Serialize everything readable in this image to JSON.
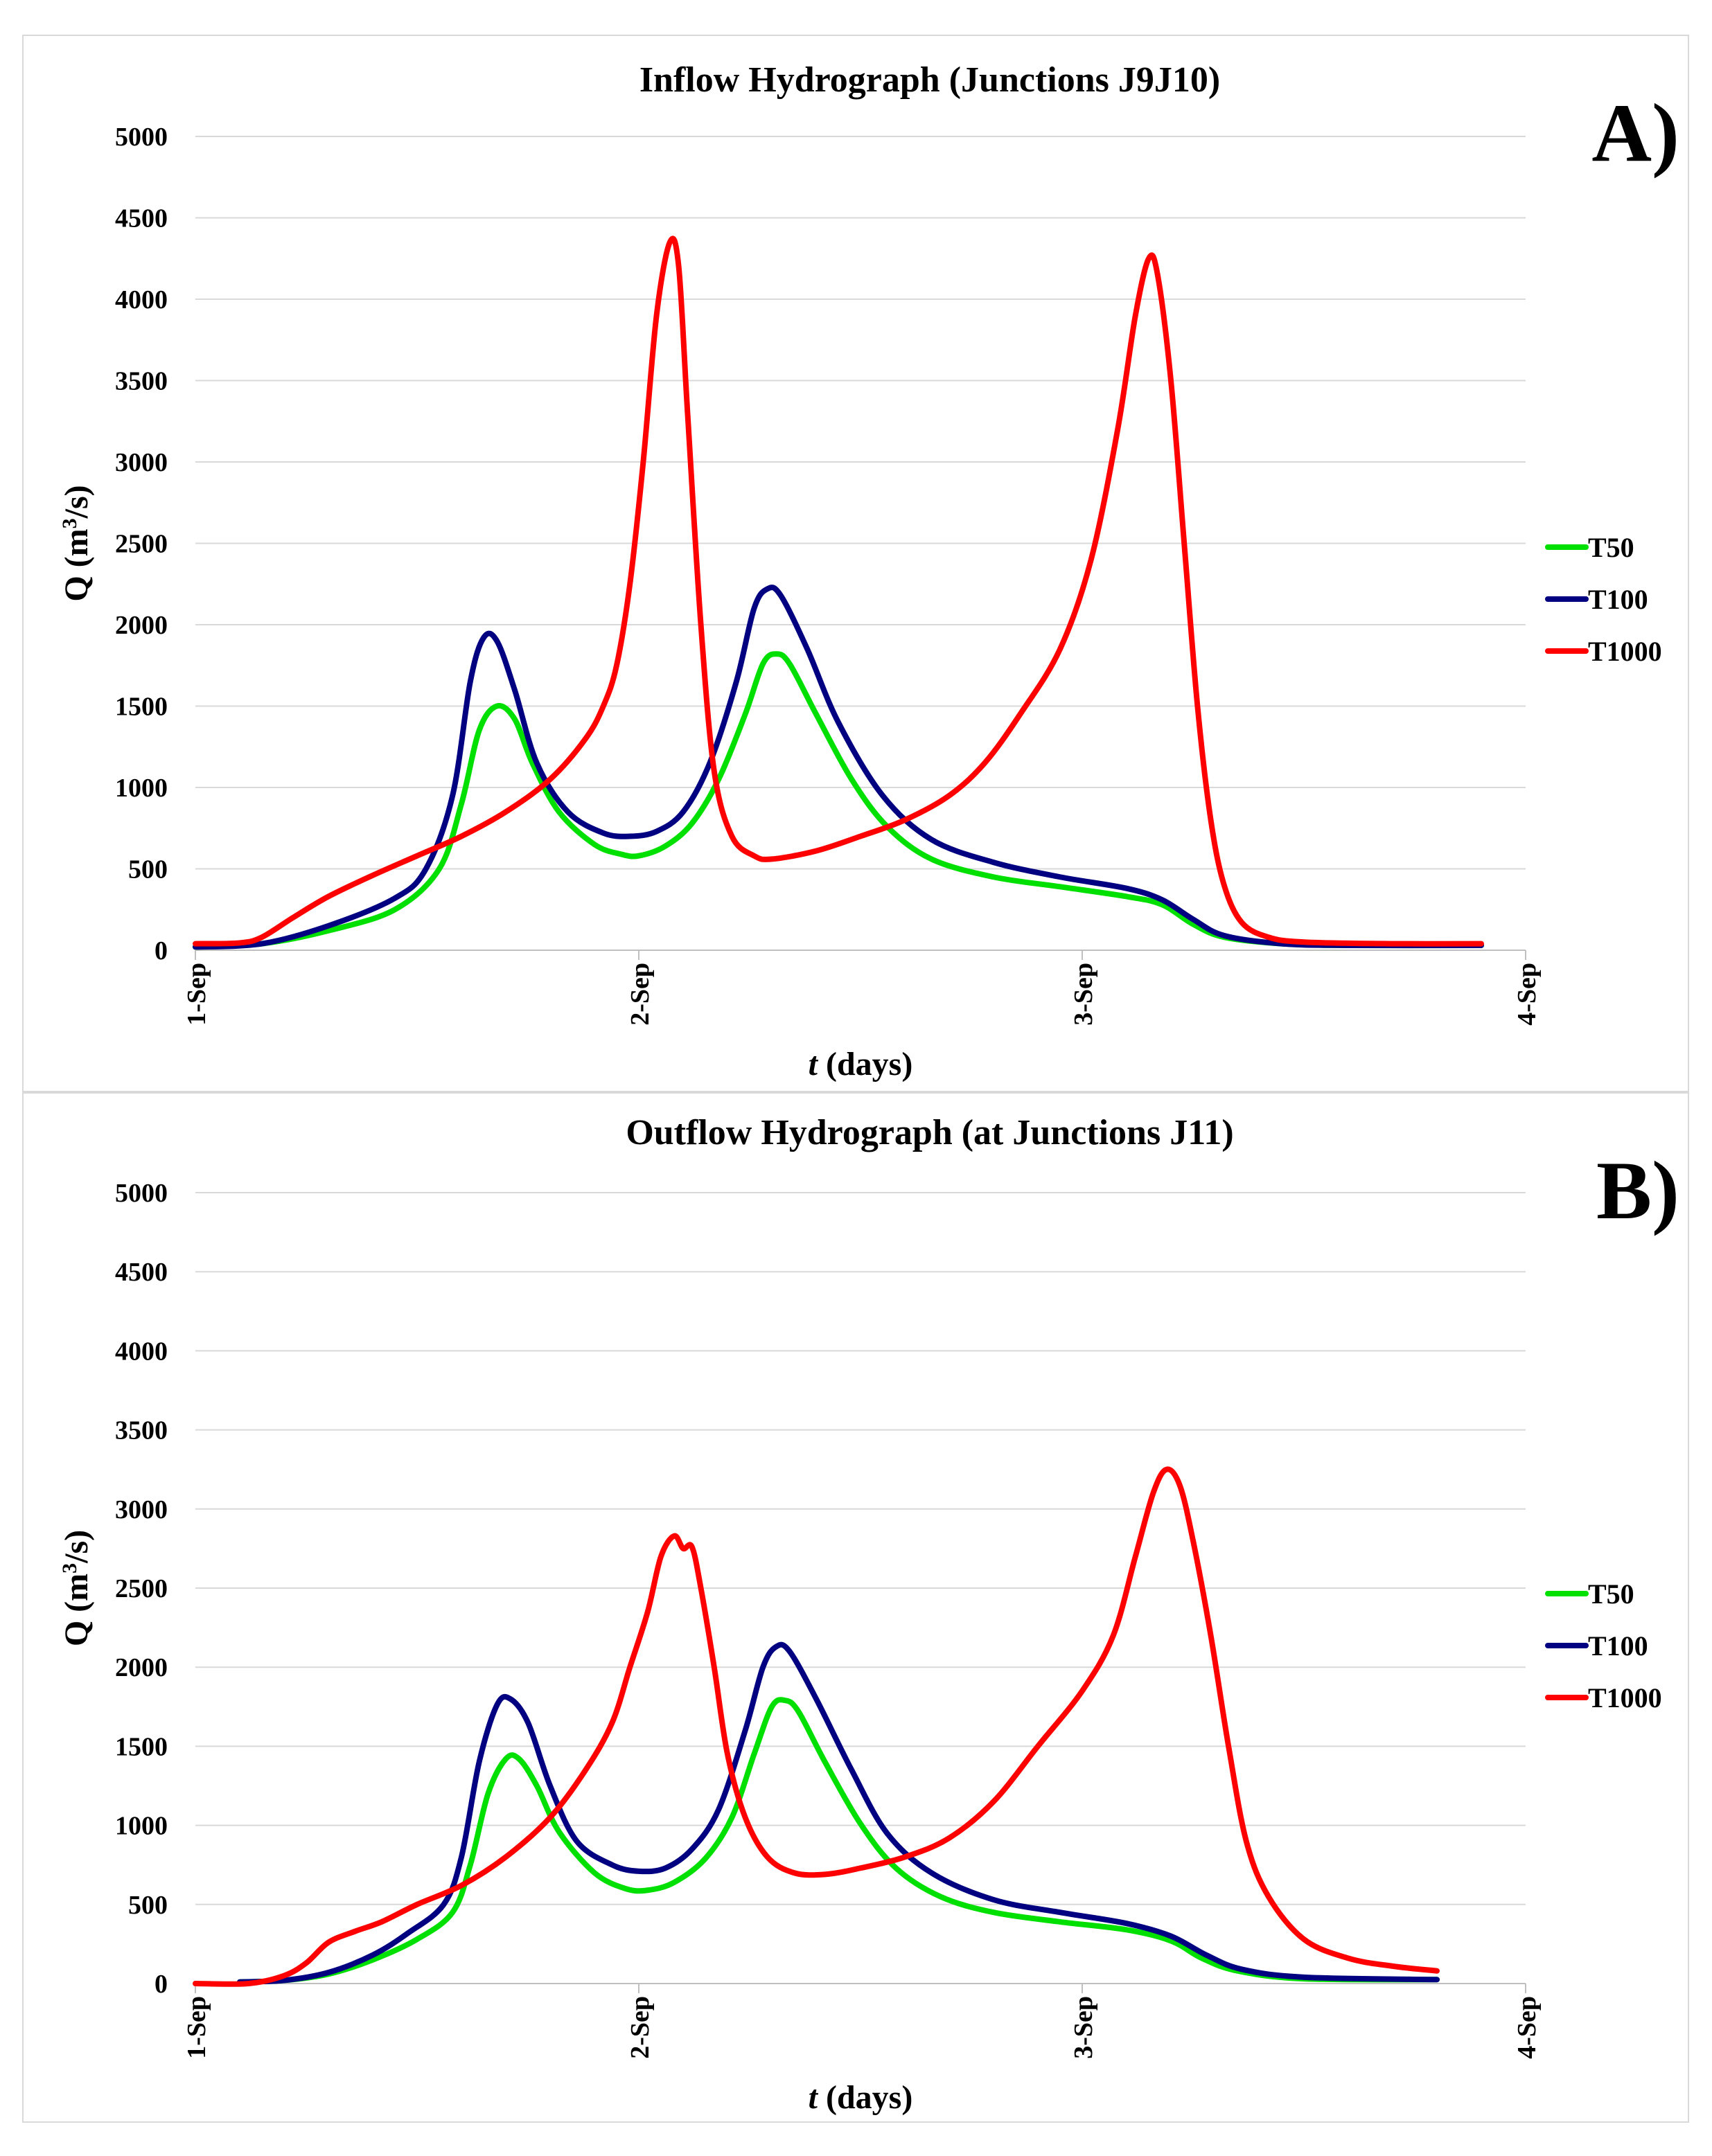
{
  "chart_data": [
    {
      "type": "line",
      "panel_label": "A)",
      "title": "Inflow Hydrograph (Junctions J9J10)",
      "xlabel_italic": "t",
      "xlabel_rest": "(days)",
      "ylabel_main": "Q (m",
      "ylabel_sup": "3",
      "ylabel_end": "/s)",
      "ylim": [
        0,
        5000
      ],
      "yticks": [
        0,
        500,
        1000,
        1500,
        2000,
        2500,
        3000,
        3500,
        4000,
        4500,
        5000
      ],
      "xlim": [
        0,
        3
      ],
      "xticks": [
        {
          "v": 0,
          "label": "1-Sep"
        },
        {
          "v": 1,
          "label": "2-Sep"
        },
        {
          "v": 2,
          "label": "3-Sep"
        },
        {
          "v": 3,
          "label": "4-Sep"
        }
      ],
      "grid": true,
      "legend_position": "right",
      "series": [
        {
          "name": "T50",
          "color": "#00e000",
          "points": [
            [
              0,
              20
            ],
            [
              0.15,
              40
            ],
            [
              0.3,
              120
            ],
            [
              0.45,
              250
            ],
            [
              0.55,
              500
            ],
            [
              0.6,
              900
            ],
            [
              0.64,
              1350
            ],
            [
              0.68,
              1500
            ],
            [
              0.72,
              1420
            ],
            [
              0.76,
              1150
            ],
            [
              0.82,
              850
            ],
            [
              0.9,
              650
            ],
            [
              0.96,
              590
            ],
            [
              1.0,
              580
            ],
            [
              1.06,
              640
            ],
            [
              1.12,
              780
            ],
            [
              1.18,
              1050
            ],
            [
              1.24,
              1450
            ],
            [
              1.28,
              1760
            ],
            [
              1.31,
              1820
            ],
            [
              1.34,
              1760
            ],
            [
              1.4,
              1450
            ],
            [
              1.48,
              1050
            ],
            [
              1.56,
              760
            ],
            [
              1.66,
              560
            ],
            [
              1.8,
              450
            ],
            [
              1.95,
              390
            ],
            [
              2.1,
              330
            ],
            [
              2.18,
              280
            ],
            [
              2.25,
              160
            ],
            [
              2.32,
              80
            ],
            [
              2.45,
              40
            ],
            [
              2.6,
              30
            ],
            [
              2.9,
              30
            ]
          ]
        },
        {
          "name": "T100",
          "color": "#000080",
          "points": [
            [
              0,
              20
            ],
            [
              0.15,
              40
            ],
            [
              0.3,
              150
            ],
            [
              0.45,
              320
            ],
            [
              0.52,
              500
            ],
            [
              0.58,
              950
            ],
            [
              0.62,
              1650
            ],
            [
              0.65,
              1920
            ],
            [
              0.68,
              1900
            ],
            [
              0.72,
              1600
            ],
            [
              0.77,
              1150
            ],
            [
              0.84,
              850
            ],
            [
              0.92,
              720
            ],
            [
              0.98,
              700
            ],
            [
              1.04,
              730
            ],
            [
              1.1,
              850
            ],
            [
              1.16,
              1150
            ],
            [
              1.22,
              1650
            ],
            [
              1.26,
              2100
            ],
            [
              1.29,
              2220
            ],
            [
              1.32,
              2180
            ],
            [
              1.38,
              1850
            ],
            [
              1.45,
              1400
            ],
            [
              1.55,
              950
            ],
            [
              1.66,
              680
            ],
            [
              1.8,
              540
            ],
            [
              1.95,
              450
            ],
            [
              2.1,
              380
            ],
            [
              2.18,
              310
            ],
            [
              2.25,
              190
            ],
            [
              2.32,
              90
            ],
            [
              2.45,
              40
            ],
            [
              2.6,
              30
            ],
            [
              2.9,
              30
            ]
          ]
        },
        {
          "name": "T1000",
          "color": "#ff0000",
          "points": [
            [
              0,
              40
            ],
            [
              0.1,
              45
            ],
            [
              0.15,
              80
            ],
            [
              0.22,
              200
            ],
            [
              0.3,
              330
            ],
            [
              0.4,
              460
            ],
            [
              0.5,
              580
            ],
            [
              0.6,
              700
            ],
            [
              0.7,
              850
            ],
            [
              0.8,
              1050
            ],
            [
              0.88,
              1300
            ],
            [
              0.92,
              1500
            ],
            [
              0.95,
              1750
            ],
            [
              0.98,
              2250
            ],
            [
              1.01,
              3000
            ],
            [
              1.04,
              3900
            ],
            [
              1.07,
              4350
            ],
            [
              1.09,
              4200
            ],
            [
              1.11,
              3300
            ],
            [
              1.14,
              2000
            ],
            [
              1.17,
              1100
            ],
            [
              1.21,
              700
            ],
            [
              1.26,
              580
            ],
            [
              1.3,
              560
            ],
            [
              1.4,
              610
            ],
            [
              1.5,
              700
            ],
            [
              1.6,
              800
            ],
            [
              1.7,
              950
            ],
            [
              1.78,
              1150
            ],
            [
              1.86,
              1450
            ],
            [
              1.95,
              1850
            ],
            [
              2.02,
              2400
            ],
            [
              2.08,
              3200
            ],
            [
              2.12,
              3900
            ],
            [
              2.15,
              4250
            ],
            [
              2.17,
              4150
            ],
            [
              2.2,
              3500
            ],
            [
              2.23,
              2500
            ],
            [
              2.26,
              1500
            ],
            [
              2.29,
              800
            ],
            [
              2.32,
              400
            ],
            [
              2.36,
              170
            ],
            [
              2.42,
              80
            ],
            [
              2.5,
              50
            ],
            [
              2.7,
              40
            ],
            [
              2.9,
              40
            ]
          ]
        }
      ]
    },
    {
      "type": "line",
      "panel_label": "B)",
      "title": "Outflow Hydrograph (at Junctions J11)",
      "xlabel_italic": "t",
      "xlabel_rest": "(days)",
      "ylabel_main": "Q (m",
      "ylabel_sup": "3",
      "ylabel_end": "/s)",
      "ylim": [
        0,
        5000
      ],
      "yticks": [
        0,
        500,
        1000,
        1500,
        2000,
        2500,
        3000,
        3500,
        4000,
        4500,
        5000
      ],
      "xlim": [
        0,
        3
      ],
      "xticks": [
        {
          "v": 0,
          "label": "1-Sep"
        },
        {
          "v": 1,
          "label": "2-Sep"
        },
        {
          "v": 2,
          "label": "3-Sep"
        },
        {
          "v": 3,
          "label": "4-Sep"
        }
      ],
      "grid": true,
      "legend_position": "right",
      "series": [
        {
          "name": "T50",
          "color": "#00e000",
          "points": [
            [
              0.1,
              10
            ],
            [
              0.2,
              20
            ],
            [
              0.3,
              60
            ],
            [
              0.4,
              150
            ],
            [
              0.5,
              280
            ],
            [
              0.58,
              450
            ],
            [
              0.62,
              750
            ],
            [
              0.66,
              1200
            ],
            [
              0.7,
              1420
            ],
            [
              0.73,
              1420
            ],
            [
              0.77,
              1250
            ],
            [
              0.82,
              960
            ],
            [
              0.9,
              700
            ],
            [
              0.97,
              600
            ],
            [
              1.02,
              590
            ],
            [
              1.08,
              640
            ],
            [
              1.15,
              790
            ],
            [
              1.21,
              1050
            ],
            [
              1.26,
              1450
            ],
            [
              1.3,
              1750
            ],
            [
              1.33,
              1790
            ],
            [
              1.36,
              1720
            ],
            [
              1.42,
              1400
            ],
            [
              1.5,
              1010
            ],
            [
              1.58,
              730
            ],
            [
              1.68,
              550
            ],
            [
              1.8,
              450
            ],
            [
              1.95,
              390
            ],
            [
              2.1,
              340
            ],
            [
              2.2,
              270
            ],
            [
              2.27,
              160
            ],
            [
              2.35,
              80
            ],
            [
              2.5,
              30
            ],
            [
              2.8,
              25
            ]
          ]
        },
        {
          "name": "T100",
          "color": "#000080",
          "points": [
            [
              0.1,
              10
            ],
            [
              0.2,
              20
            ],
            [
              0.3,
              70
            ],
            [
              0.4,
              180
            ],
            [
              0.48,
              320
            ],
            [
              0.56,
              500
            ],
            [
              0.6,
              800
            ],
            [
              0.64,
              1400
            ],
            [
              0.68,
              1760
            ],
            [
              0.71,
              1800
            ],
            [
              0.75,
              1650
            ],
            [
              0.8,
              1250
            ],
            [
              0.86,
              900
            ],
            [
              0.94,
              750
            ],
            [
              1.0,
              710
            ],
            [
              1.06,
              730
            ],
            [
              1.12,
              850
            ],
            [
              1.18,
              1100
            ],
            [
              1.24,
              1600
            ],
            [
              1.28,
              2000
            ],
            [
              1.31,
              2130
            ],
            [
              1.34,
              2100
            ],
            [
              1.4,
              1800
            ],
            [
              1.48,
              1350
            ],
            [
              1.56,
              950
            ],
            [
              1.66,
              700
            ],
            [
              1.8,
              530
            ],
            [
              1.95,
              450
            ],
            [
              2.1,
              380
            ],
            [
              2.2,
              300
            ],
            [
              2.28,
              180
            ],
            [
              2.36,
              90
            ],
            [
              2.5,
              40
            ],
            [
              2.8,
              25
            ]
          ]
        },
        {
          "name": "T1000",
          "color": "#ff0000",
          "points": [
            [
              0,
              0
            ],
            [
              0.12,
              0
            ],
            [
              0.2,
              50
            ],
            [
              0.25,
              130
            ],
            [
              0.3,
              260
            ],
            [
              0.36,
              330
            ],
            [
              0.42,
              390
            ],
            [
              0.5,
              500
            ],
            [
              0.6,
              620
            ],
            [
              0.7,
              800
            ],
            [
              0.8,
              1050
            ],
            [
              0.88,
              1350
            ],
            [
              0.94,
              1650
            ],
            [
              0.98,
              2000
            ],
            [
              1.02,
              2350
            ],
            [
              1.05,
              2700
            ],
            [
              1.08,
              2830
            ],
            [
              1.1,
              2750
            ],
            [
              1.12,
              2760
            ],
            [
              1.14,
              2500
            ],
            [
              1.17,
              2000
            ],
            [
              1.2,
              1450
            ],
            [
              1.24,
              1050
            ],
            [
              1.29,
              800
            ],
            [
              1.35,
              700
            ],
            [
              1.42,
              690
            ],
            [
              1.5,
              730
            ],
            [
              1.6,
              800
            ],
            [
              1.7,
              920
            ],
            [
              1.8,
              1150
            ],
            [
              1.9,
              1500
            ],
            [
              2.0,
              1850
            ],
            [
              2.07,
              2200
            ],
            [
              2.12,
              2700
            ],
            [
              2.16,
              3100
            ],
            [
              2.19,
              3250
            ],
            [
              2.22,
              3150
            ],
            [
              2.25,
              2800
            ],
            [
              2.29,
              2200
            ],
            [
              2.33,
              1500
            ],
            [
              2.37,
              900
            ],
            [
              2.42,
              550
            ],
            [
              2.5,
              280
            ],
            [
              2.6,
              160
            ],
            [
              2.7,
              110
            ],
            [
              2.8,
              80
            ]
          ]
        }
      ]
    }
  ]
}
